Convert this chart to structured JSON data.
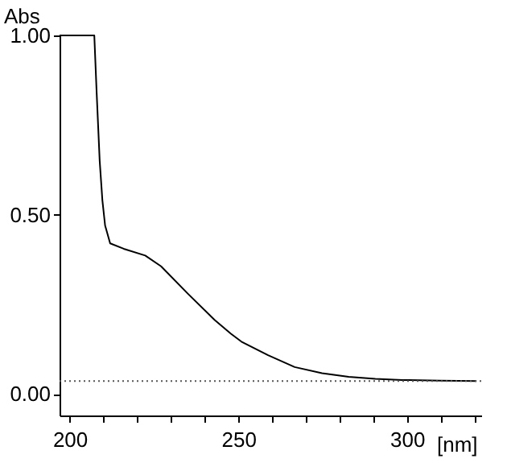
{
  "chart_data": {
    "type": "line",
    "xlabel": "[nm]",
    "ylabel": "Abs",
    "x": [
      197,
      200,
      204,
      207.3,
      208,
      208.9,
      209.7,
      210.5,
      212,
      216,
      222.4,
      227.1,
      235,
      243,
      247.8,
      250.9,
      258.8,
      266.7,
      274.8,
      282.7,
      290.6,
      298.6,
      310,
      320.6
    ],
    "series": [
      {
        "color": "#000000",
        "values": [
          1.0,
          1.0,
          1.0,
          1.0,
          0.84,
          0.65,
          0.54,
          0.47,
          0.42,
          0.405,
          0.386,
          0.356,
          0.28,
          0.206,
          0.168,
          0.146,
          0.108,
          0.075,
          0.058,
          0.048,
          0.042,
          0.039,
          0.037,
          0.036
        ]
      }
    ],
    "xlim": [
      197,
      322
    ],
    "ylim": [
      -0.06,
      1.0
    ],
    "xticks": [
      200,
      {
        "value": 210,
        "label": null
      },
      {
        "value": 220,
        "label": null
      },
      {
        "value": 230,
        "label": null
      },
      {
        "value": 240,
        "label": null
      },
      250,
      {
        "value": 260,
        "label": null
      },
      {
        "value": 270,
        "label": null
      },
      {
        "value": 280,
        "label": null
      },
      {
        "value": 290,
        "label": null
      },
      300,
      {
        "value": 310,
        "label": null
      },
      {
        "value": 320,
        "label": null
      }
    ],
    "yticks": [
      {
        "value": 0,
        "label": "0.00"
      },
      {
        "value": 0.5,
        "label": "0.50"
      },
      {
        "value": 1.0,
        "label": "1.00"
      }
    ],
    "ref_lines": [
      {
        "axis": "y",
        "value": 0.036,
        "line_style": "dotted",
        "color": "#555555"
      }
    ],
    "grid": false,
    "line_style": "solid",
    "marker": "none"
  }
}
